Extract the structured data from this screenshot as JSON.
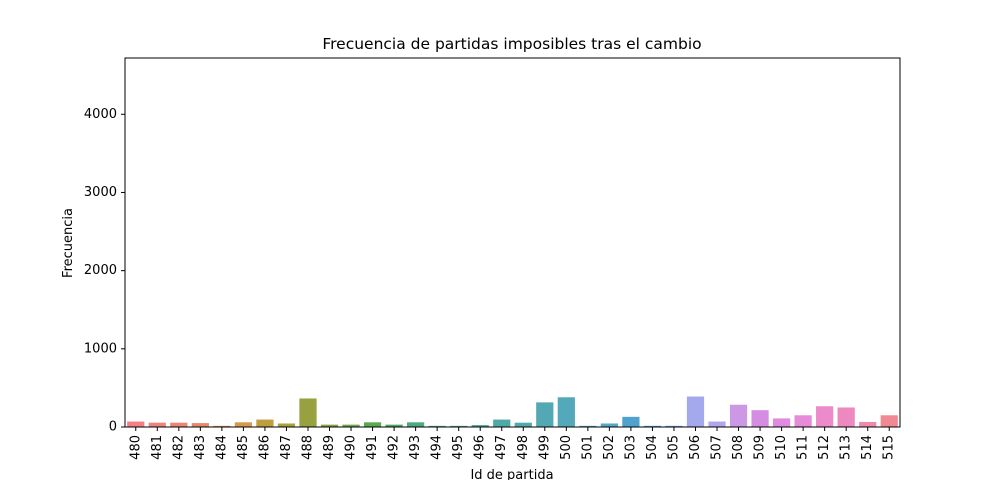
{
  "chart_data": {
    "type": "bar",
    "title": "Frecuencia de partidas imposibles tras el cambio",
    "xlabel": "Id de partida",
    "ylabel": "Frecuencia",
    "ylim": [
      0,
      4720
    ],
    "yticks": [
      0,
      1000,
      2000,
      3000,
      4000
    ],
    "grid": false,
    "legend": "none",
    "categories": [
      "480",
      "481",
      "482",
      "483",
      "484",
      "485",
      "486",
      "487",
      "488",
      "489",
      "490",
      "491",
      "492",
      "493",
      "494",
      "495",
      "496",
      "497",
      "498",
      "499",
      "500",
      "501",
      "502",
      "503",
      "504",
      "505",
      "506",
      "507",
      "508",
      "509",
      "510",
      "511",
      "512",
      "513",
      "514",
      "515"
    ],
    "values": [
      70,
      55,
      55,
      50,
      15,
      60,
      95,
      45,
      365,
      30,
      30,
      60,
      30,
      60,
      15,
      15,
      25,
      95,
      55,
      315,
      380,
      15,
      45,
      130,
      15,
      15,
      390,
      70,
      285,
      215,
      110,
      150,
      265,
      250,
      65,
      150
    ],
    "colors": [
      "#f47f86",
      "#f1827e",
      "#ed8574",
      "#e9886a",
      "#e58b5c",
      "#d69a4f",
      "#be9e3e",
      "#a8a33c",
      "#98a140",
      "#87a43f",
      "#6fa64a",
      "#5ca950",
      "#4aaa5c",
      "#4bab7f",
      "#4aab8c",
      "#4bab97",
      "#4caa9f",
      "#4ea9a7",
      "#4fa9ad",
      "#52a8b3",
      "#53a8b9",
      "#54a8bf",
      "#56a8c6",
      "#4fa2ce",
      "#4d9fd7",
      "#6b9ee6",
      "#a4a9ee",
      "#b2a5ee",
      "#cc98e6",
      "#d48de3",
      "#df8be0",
      "#e78ad8",
      "#ec8acb",
      "#ec89c0",
      "#ee8aad",
      "#f08994"
    ]
  }
}
